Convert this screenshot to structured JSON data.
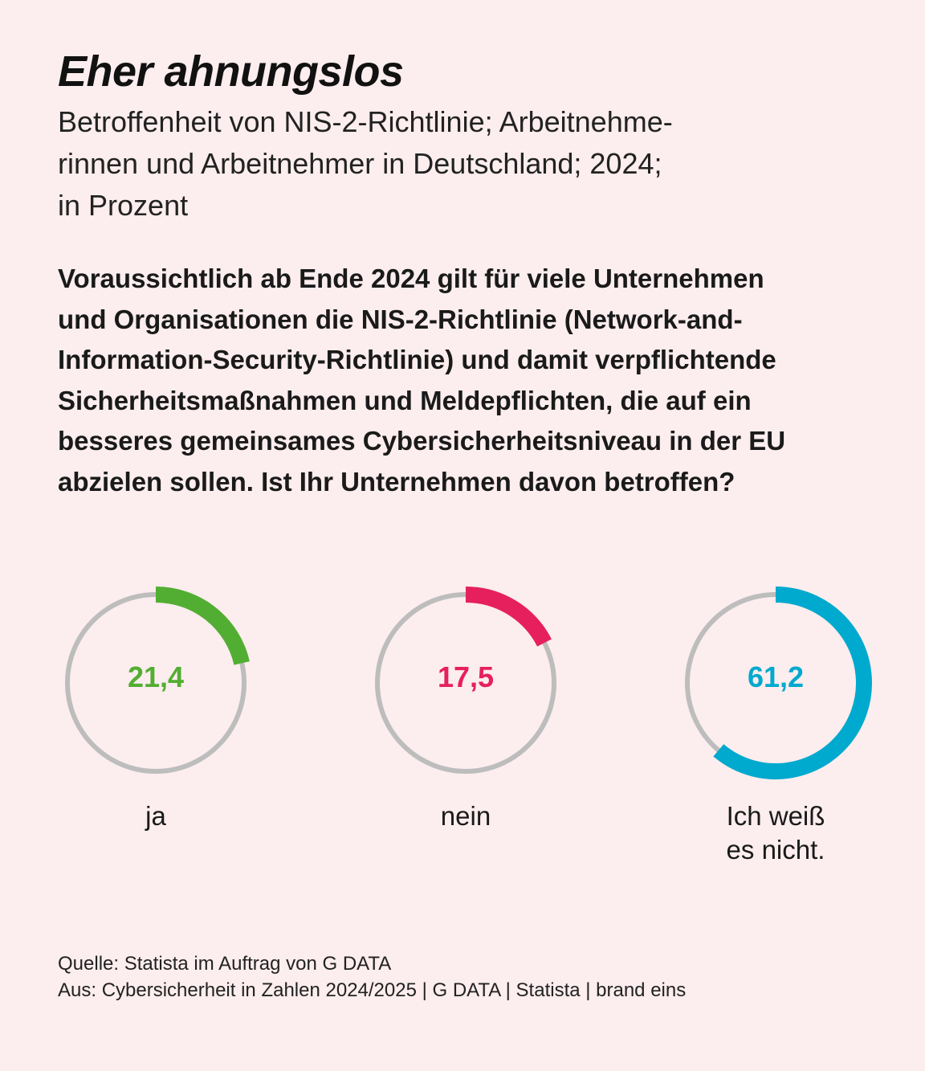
{
  "title": "Eher ahnungslos",
  "subtitle_lines": [
    "Betroffenheit von NIS-2-Richtlinie; Arbeitnehme-",
    "rinnen und Arbeitnehmer in Deutschland; 2024;",
    "in Prozent"
  ],
  "question_lines": [
    "Voraussichtlich ab Ende 2024 gilt für viele Unternehmen",
    "und Organisationen die NIS-2-Richtlinie (Network-and-",
    "Information-Security-Richtlinie) und damit verpflichtende",
    "Sicherheitsmaßnahmen und Meldepflichten, die auf ein",
    "besseres gemeinsames Cybersicherheitsniveau in der EU",
    "abzielen sollen. Ist Ihr Unternehmen davon betroffen?"
  ],
  "chart_data": {
    "type": "pie",
    "unit": "Prozent",
    "categories": [
      "ja",
      "nein",
      "Ich weiß es nicht."
    ],
    "values": [
      21.4,
      17.5,
      61.2
    ],
    "items": [
      {
        "label_lines": [
          "ja"
        ],
        "value": 21.4,
        "display": "21,4",
        "color": "#52ae32"
      },
      {
        "label_lines": [
          "nein"
        ],
        "value": 17.5,
        "display": "17,5",
        "color": "#e6205d"
      },
      {
        "label_lines": [
          "Ich weiß",
          "es nicht."
        ],
        "value": 61.2,
        "display": "61,2",
        "color": "#00a9ce"
      }
    ],
    "track_color": "#bdbdbd"
  },
  "footer": {
    "source": "Quelle: Statista im Auftrag von G DATA",
    "origin": "Aus: Cybersicherheit in Zahlen 2024/2025 | G DATA | Statista | brand eins"
  }
}
